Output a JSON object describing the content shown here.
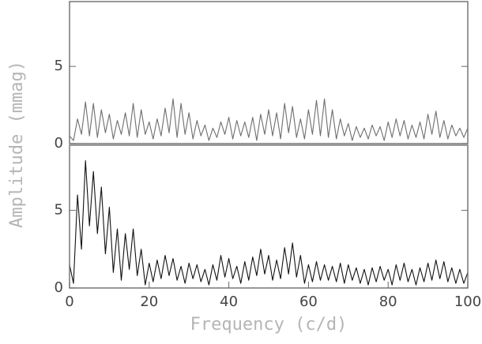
{
  "chart_data": [
    {
      "type": "line",
      "ylabel": "Amplitude (mmag)",
      "color": "#6e6e6e",
      "x": [
        0,
        1,
        2,
        3,
        4,
        5,
        6,
        7,
        8,
        9,
        10,
        11,
        12,
        13,
        14,
        15,
        16,
        17,
        18,
        19,
        20,
        21,
        22,
        23,
        24,
        25,
        26,
        27,
        28,
        29,
        30,
        31,
        32,
        33,
        34,
        35,
        36,
        37,
        38,
        39,
        40,
        41,
        42,
        43,
        44,
        45,
        46,
        47,
        48,
        49,
        50,
        51,
        52,
        53,
        54,
        55,
        56,
        57,
        58,
        59,
        60,
        61,
        62,
        63,
        64,
        65,
        66,
        67,
        68,
        69,
        70,
        71,
        72,
        73,
        74,
        75,
        76,
        77,
        78,
        79,
        80,
        81,
        82,
        83,
        84,
        85,
        86,
        87,
        88,
        89,
        90,
        91,
        92,
        93,
        94,
        95,
        96,
        97,
        98,
        99,
        100
      ],
      "values": [
        0.5,
        0.2,
        1.6,
        0.6,
        2.7,
        0.5,
        2.6,
        0.4,
        2.2,
        0.7,
        1.9,
        0.3,
        1.5,
        0.6,
        2.0,
        0.5,
        2.6,
        0.4,
        2.2,
        0.6,
        1.4,
        0.3,
        1.6,
        0.5,
        2.3,
        0.7,
        2.9,
        0.4,
        2.6,
        0.6,
        2.0,
        0.3,
        1.5,
        0.5,
        1.2,
        0.2,
        1.0,
        0.4,
        1.4,
        0.6,
        1.7,
        0.3,
        1.5,
        0.5,
        1.4,
        0.4,
        1.7,
        0.2,
        1.9,
        0.6,
        2.2,
        0.5,
        2.0,
        0.3,
        2.6,
        0.7,
        2.4,
        0.4,
        1.6,
        0.3,
        2.2,
        0.6,
        2.8,
        0.5,
        2.9,
        0.4,
        2.2,
        0.3,
        1.6,
        0.5,
        1.3,
        0.2,
        1.1,
        0.4,
        1.0,
        0.3,
        1.2,
        0.5,
        1.1,
        0.2,
        1.4,
        0.4,
        1.6,
        0.5,
        1.5,
        0.3,
        1.2,
        0.4,
        1.4,
        0.3,
        1.9,
        0.6,
        2.1,
        0.4,
        1.5,
        0.3,
        1.2,
        0.5,
        1.0,
        0.4,
        1.0
      ],
      "xlim": [
        0,
        100
      ],
      "ylim": [
        0,
        9.2
      ],
      "yticks": [
        0,
        5
      ]
    },
    {
      "type": "line",
      "xlabel": "Frequency (c/d)",
      "color": "#111111",
      "x": [
        0,
        1,
        2,
        3,
        4,
        5,
        6,
        7,
        8,
        9,
        10,
        11,
        12,
        13,
        14,
        15,
        16,
        17,
        18,
        19,
        20,
        21,
        22,
        23,
        24,
        25,
        26,
        27,
        28,
        29,
        30,
        31,
        32,
        33,
        34,
        35,
        36,
        37,
        38,
        39,
        40,
        41,
        42,
        43,
        44,
        45,
        46,
        47,
        48,
        49,
        50,
        51,
        52,
        53,
        54,
        55,
        56,
        57,
        58,
        59,
        60,
        61,
        62,
        63,
        64,
        65,
        66,
        67,
        68,
        69,
        70,
        71,
        72,
        73,
        74,
        75,
        76,
        77,
        78,
        79,
        80,
        81,
        82,
        83,
        84,
        85,
        86,
        87,
        88,
        89,
        90,
        91,
        92,
        93,
        94,
        95,
        96,
        97,
        98,
        99,
        100
      ],
      "values": [
        1.5,
        0.3,
        6.0,
        2.5,
        8.2,
        4.0,
        7.5,
        3.5,
        6.5,
        2.2,
        5.2,
        1.0,
        3.8,
        0.5,
        3.5,
        1.2,
        3.8,
        0.8,
        2.5,
        0.2,
        1.6,
        0.4,
        1.8,
        0.6,
        2.1,
        0.8,
        1.9,
        0.5,
        1.4,
        0.3,
        1.6,
        0.6,
        1.5,
        0.4,
        1.2,
        0.2,
        1.5,
        0.5,
        2.1,
        0.7,
        1.9,
        0.6,
        1.4,
        0.3,
        1.7,
        0.5,
        2.0,
        0.8,
        2.5,
        0.9,
        2.1,
        0.5,
        1.8,
        0.6,
        2.6,
        0.9,
        2.9,
        0.7,
        2.1,
        0.3,
        1.5,
        0.4,
        1.7,
        0.5,
        1.5,
        0.5,
        1.4,
        0.4,
        1.6,
        0.3,
        1.5,
        0.5,
        1.3,
        0.3,
        1.2,
        0.2,
        1.3,
        0.4,
        1.4,
        0.5,
        1.2,
        0.2,
        1.5,
        0.5,
        1.6,
        0.4,
        1.2,
        0.2,
        1.3,
        0.4,
        1.6,
        0.5,
        1.8,
        0.6,
        1.7,
        0.4,
        1.3,
        0.3,
        1.2,
        0.3,
        1.0
      ],
      "xlim": [
        0,
        100
      ],
      "ylim": [
        0,
        9.2
      ],
      "yticks": [
        0,
        5
      ],
      "xticks": [
        0,
        20,
        40,
        60,
        80,
        100
      ]
    }
  ]
}
